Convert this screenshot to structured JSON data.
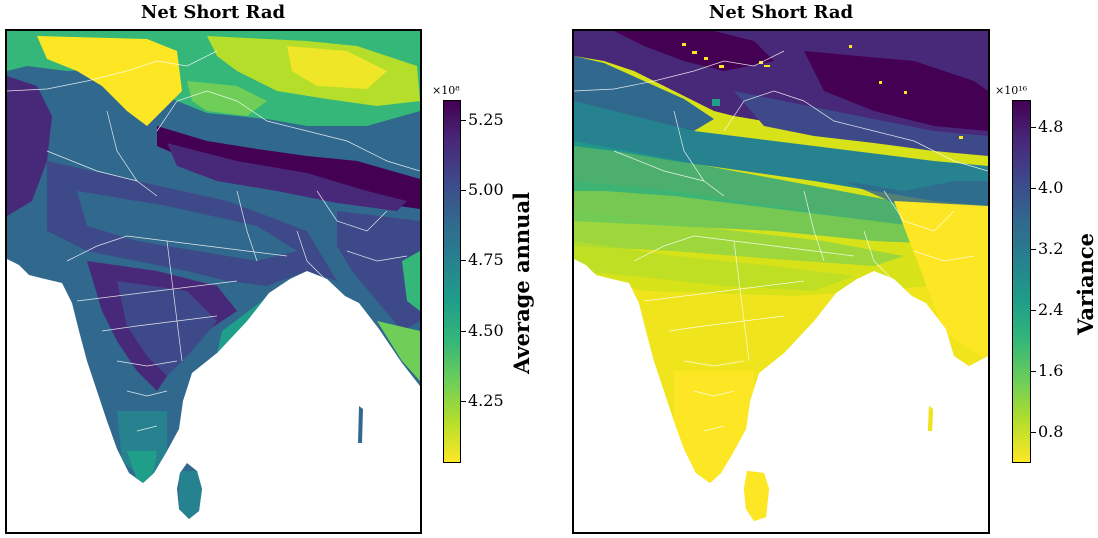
{
  "panels": [
    {
      "title": "Net Short Rad",
      "colorbar": {
        "label": "Average annual",
        "multiplier": "×10⁸",
        "ticks": [
          "5.25",
          "5.00",
          "4.75",
          "4.50",
          "4.25"
        ],
        "tick_values": [
          5.25,
          5.0,
          4.75,
          4.5,
          4.25
        ],
        "range": [
          4.03,
          5.32
        ],
        "colormap": "viridis_r"
      }
    },
    {
      "title": "Net Short Rad",
      "colorbar": {
        "label": "Variance",
        "multiplier": "×10¹⁶",
        "ticks": [
          "4.8",
          "4.0",
          "3.2",
          "2.4",
          "1.6",
          "0.8"
        ],
        "tick_values": [
          4.8,
          4.0,
          3.2,
          2.4,
          1.6,
          0.8
        ],
        "range": [
          0.4,
          5.15
        ],
        "colormap": "viridis_r"
      }
    }
  ],
  "colors": {
    "viridis_r": [
      "#fde725",
      "#b5de2b",
      "#6ece58",
      "#35b779",
      "#1f9e89",
      "#26828e",
      "#31688e",
      "#3e4989",
      "#482878",
      "#440154"
    ],
    "boundary": "#ffffff"
  }
}
